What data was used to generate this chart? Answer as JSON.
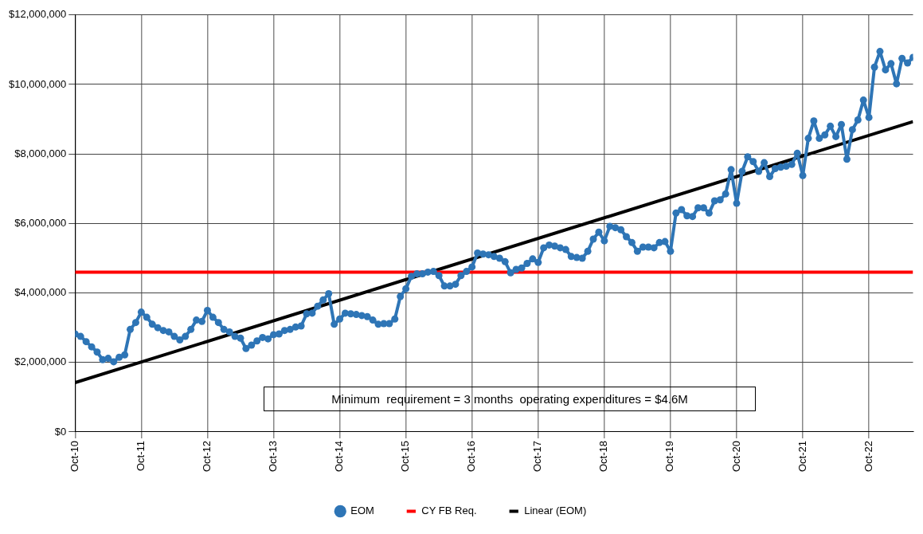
{
  "chart_data": {
    "type": "line",
    "xlim": [
      "2010-10",
      "2023-06"
    ],
    "xticks": [
      {
        "value": "2010-10",
        "label": "Oct-10"
      },
      {
        "value": "2011-10",
        "label": "Oct-11"
      },
      {
        "value": "2012-10",
        "label": "Oct-12"
      },
      {
        "value": "2013-10",
        "label": "Oct-13"
      },
      {
        "value": "2014-10",
        "label": "Oct-14"
      },
      {
        "value": "2015-10",
        "label": "Oct-15"
      },
      {
        "value": "2016-10",
        "label": "Oct-16"
      },
      {
        "value": "2017-10",
        "label": "Oct-17"
      },
      {
        "value": "2018-10",
        "label": "Oct-18"
      },
      {
        "value": "2019-10",
        "label": "Oct-19"
      },
      {
        "value": "2020-10",
        "label": "Oct-20"
      },
      {
        "value": "2021-10",
        "label": "Oct-21"
      },
      {
        "value": "2022-10",
        "label": "Oct-22"
      }
    ],
    "ylim": [
      0,
      12000000
    ],
    "yticks": [
      {
        "value": 0,
        "label": "$0"
      },
      {
        "value": 2000000,
        "label": "$2,000,000"
      },
      {
        "value": 4000000,
        "label": "$4,000,000"
      },
      {
        "value": 6000000,
        "label": "$6,000,000"
      },
      {
        "value": 8000000,
        "label": "$8,000,000"
      },
      {
        "value": 10000000,
        "label": "$10,000,000"
      },
      {
        "value": 12000000,
        "label": "$12,000,000"
      }
    ],
    "grid": true,
    "legend": "bottom",
    "annotations": [
      "Minimum  requirement = 3 months  operating expenditures = $4.6M"
    ],
    "series": [
      {
        "name": "EOM",
        "color": "#2e75b6",
        "marker": "circle",
        "x": [
          "2010-10",
          "2010-11",
          "2010-12",
          "2011-01",
          "2011-02",
          "2011-03",
          "2011-04",
          "2011-05",
          "2011-06",
          "2011-07",
          "2011-08",
          "2011-09",
          "2011-10",
          "2011-11",
          "2011-12",
          "2012-01",
          "2012-02",
          "2012-03",
          "2012-04",
          "2012-05",
          "2012-06",
          "2012-07",
          "2012-08",
          "2012-09",
          "2012-10",
          "2012-11",
          "2012-12",
          "2013-01",
          "2013-02",
          "2013-03",
          "2013-04",
          "2013-05",
          "2013-06",
          "2013-07",
          "2013-08",
          "2013-09",
          "2013-10",
          "2013-11",
          "2013-12",
          "2014-01",
          "2014-02",
          "2014-03",
          "2014-04",
          "2014-05",
          "2014-06",
          "2014-07",
          "2014-08",
          "2014-09",
          "2014-10",
          "2014-11",
          "2014-12",
          "2015-01",
          "2015-02",
          "2015-03",
          "2015-04",
          "2015-05",
          "2015-06",
          "2015-07",
          "2015-08",
          "2015-09",
          "2015-10",
          "2015-11",
          "2015-12",
          "2016-01",
          "2016-02",
          "2016-03",
          "2016-04",
          "2016-05",
          "2016-06",
          "2016-07",
          "2016-08",
          "2016-09",
          "2016-10",
          "2016-11",
          "2016-12",
          "2017-01",
          "2017-02",
          "2017-03",
          "2017-04",
          "2017-05",
          "2017-06",
          "2017-07",
          "2017-08",
          "2017-09",
          "2017-10",
          "2017-11",
          "2017-12",
          "2018-01",
          "2018-02",
          "2018-03",
          "2018-04",
          "2018-05",
          "2018-06",
          "2018-07",
          "2018-08",
          "2018-09",
          "2018-10",
          "2018-11",
          "2018-12",
          "2019-01",
          "2019-02",
          "2019-03",
          "2019-04",
          "2019-05",
          "2019-06",
          "2019-07",
          "2019-08",
          "2019-09",
          "2019-10",
          "2019-11",
          "2019-12",
          "2020-01",
          "2020-02",
          "2020-03",
          "2020-04",
          "2020-05",
          "2020-06",
          "2020-07",
          "2020-08",
          "2020-09",
          "2020-10",
          "2020-11",
          "2020-12",
          "2021-01",
          "2021-02",
          "2021-03",
          "2021-04",
          "2021-05",
          "2021-06",
          "2021-07",
          "2021-08",
          "2021-09",
          "2021-10",
          "2021-11",
          "2021-12",
          "2022-01",
          "2022-02",
          "2022-03",
          "2022-04",
          "2022-05",
          "2022-06",
          "2022-07",
          "2022-08",
          "2022-09",
          "2022-10",
          "2022-11",
          "2022-12",
          "2023-01",
          "2023-02",
          "2023-03",
          "2023-04",
          "2023-05",
          "2023-06"
        ],
        "values": [
          2820000,
          2750000,
          2600000,
          2450000,
          2300000,
          2080000,
          2120000,
          2020000,
          2150000,
          2220000,
          2950000,
          3150000,
          3450000,
          3300000,
          3100000,
          3000000,
          2920000,
          2880000,
          2750000,
          2650000,
          2750000,
          2950000,
          3220000,
          3180000,
          3500000,
          3300000,
          3150000,
          2950000,
          2880000,
          2750000,
          2700000,
          2400000,
          2500000,
          2620000,
          2720000,
          2680000,
          2800000,
          2820000,
          2920000,
          2950000,
          3020000,
          3050000,
          3400000,
          3420000,
          3620000,
          3800000,
          3980000,
          3100000,
          3250000,
          3420000,
          3400000,
          3380000,
          3350000,
          3320000,
          3220000,
          3100000,
          3120000,
          3120000,
          3250000,
          3900000,
          4120000,
          4480000,
          4550000,
          4550000,
          4600000,
          4620000,
          4500000,
          4200000,
          4200000,
          4250000,
          4500000,
          4620000,
          4750000,
          5150000,
          5120000,
          5100000,
          5050000,
          5000000,
          4900000,
          4580000,
          4680000,
          4720000,
          4850000,
          4980000,
          4880000,
          5300000,
          5380000,
          5350000,
          5300000,
          5250000,
          5050000,
          5020000,
          5000000,
          5200000,
          5550000,
          5750000,
          5500000,
          5920000,
          5880000,
          5820000,
          5620000,
          5450000,
          5200000,
          5320000,
          5320000,
          5300000,
          5450000,
          5480000,
          5200000,
          6300000,
          6400000,
          6220000,
          6200000,
          6450000,
          6450000,
          6300000,
          6650000,
          6680000,
          6850000,
          7550000,
          6580000,
          7500000,
          7920000,
          7780000,
          7500000,
          7750000,
          7350000,
          7580000,
          7620000,
          7650000,
          7700000,
          8020000,
          7380000,
          8450000,
          8950000,
          8450000,
          8550000,
          8800000,
          8500000,
          8850000,
          7850000,
          8700000,
          8980000,
          9550000,
          9050000,
          10500000,
          10950000,
          10420000,
          10600000,
          10020000,
          10750000,
          10620000,
          10780000
        ]
      },
      {
        "name": "CY FB Req.",
        "color": "#ff0000",
        "marker": "none",
        "x": [
          "2010-10",
          "2023-06"
        ],
        "values": [
          4600000,
          4600000
        ]
      },
      {
        "name": "Linear (EOM)",
        "color": "#000000",
        "marker": "none",
        "x": [
          "2010-10",
          "2023-06"
        ],
        "values": [
          1420000,
          8930000
        ]
      }
    ]
  }
}
